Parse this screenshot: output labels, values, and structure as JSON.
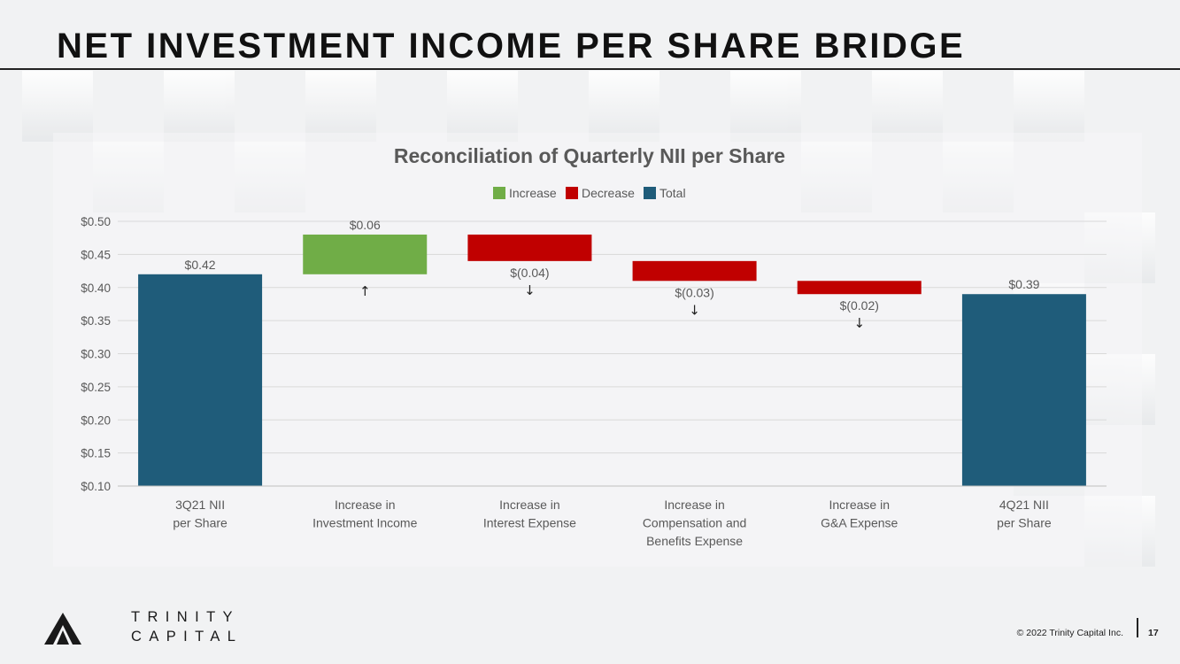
{
  "slide": {
    "title": "NET INVESTMENT INCOME PER SHARE BRIDGE",
    "copyright": "© 2022 Trinity Capital Inc.",
    "page_number": "17",
    "logo": {
      "line1": "TRINITY",
      "line2": "CAPITAL"
    }
  },
  "colors": {
    "increase": "#70ad47",
    "decrease": "#c00000",
    "total": "#1f5c7a"
  },
  "chart_data": {
    "type": "bar",
    "subtype": "waterfall",
    "title": "Reconciliation of Quarterly NII per Share",
    "legend": [
      "Increase",
      "Decrease",
      "Total"
    ],
    "legend_position": "top",
    "grid": true,
    "ylim": [
      0.1,
      0.5
    ],
    "y_ticks": [
      "$0.10",
      "$0.15",
      "$0.20",
      "$0.25",
      "$0.30",
      "$0.35",
      "$0.40",
      "$0.45",
      "$0.50"
    ],
    "y_tick_values": [
      0.1,
      0.15,
      0.2,
      0.25,
      0.3,
      0.35,
      0.4,
      0.45,
      0.5
    ],
    "categories": [
      [
        "3Q21 NII",
        "per Share"
      ],
      [
        "Increase in",
        "Investment Income"
      ],
      [
        "Increase in",
        "Interest Expense"
      ],
      [
        "Increase in",
        "Compensation and",
        "Benefits Expense"
      ],
      [
        "Increase in",
        "G&A Expense"
      ],
      [
        "4Q21 NII",
        "per Share"
      ]
    ],
    "bars": [
      {
        "kind": "Total",
        "start": 0.1,
        "end": 0.42,
        "label": "$0.42",
        "arrow": ""
      },
      {
        "kind": "Increase",
        "start": 0.42,
        "end": 0.48,
        "label": "$0.06",
        "arrow": "↑"
      },
      {
        "kind": "Decrease",
        "start": 0.48,
        "end": 0.44,
        "label": "$(0.04)",
        "arrow": "↓"
      },
      {
        "kind": "Decrease",
        "start": 0.44,
        "end": 0.41,
        "label": "$(0.03)",
        "arrow": "↓"
      },
      {
        "kind": "Decrease",
        "start": 0.41,
        "end": 0.39,
        "label": "$(0.02)",
        "arrow": "↓"
      },
      {
        "kind": "Total",
        "start": 0.1,
        "end": 0.39,
        "label": "$0.39",
        "arrow": ""
      }
    ]
  }
}
